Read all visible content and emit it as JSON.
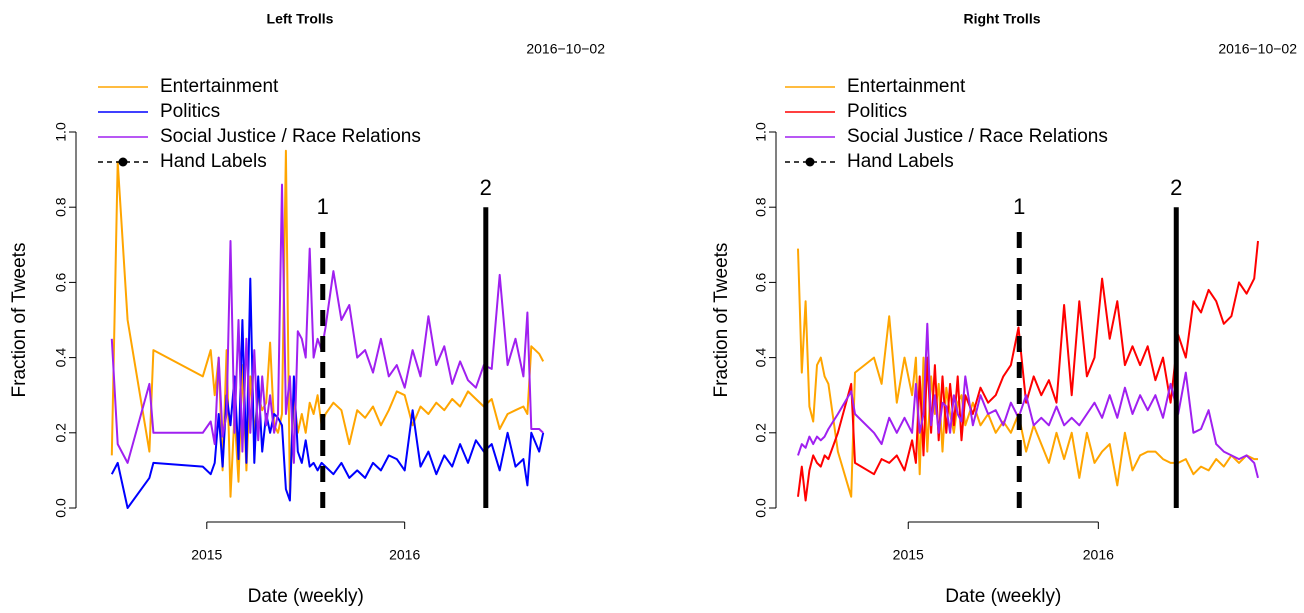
{
  "chart_data": [
    {
      "type": "line",
      "title": "Left Trolls",
      "subtitle": "2016−10−02",
      "xlabel": "Date (weekly)",
      "ylabel": "Fraction of Tweets",
      "x": [
        2014.52,
        2014.55,
        2014.6,
        2014.71,
        2014.73,
        2014.98,
        2015.02,
        2015.04,
        2015.06,
        2015.08,
        2015.1,
        2015.12,
        2015.14,
        2015.16,
        2015.18,
        2015.2,
        2015.22,
        2015.24,
        2015.26,
        2015.28,
        2015.3,
        2015.32,
        2015.34,
        2015.36,
        2015.38,
        2015.4,
        2015.42,
        2015.44,
        2015.46,
        2015.48,
        2015.5,
        2015.52,
        2015.54,
        2015.56,
        2015.58,
        2015.6,
        2015.64,
        2015.68,
        2015.72,
        2015.76,
        2015.8,
        2015.84,
        2015.88,
        2015.92,
        2015.96,
        2016.0,
        2016.04,
        2016.08,
        2016.12,
        2016.16,
        2016.2,
        2016.24,
        2016.28,
        2016.32,
        2016.36,
        2016.4,
        2016.44,
        2016.48,
        2016.52,
        2016.56,
        2016.6,
        2016.62,
        2016.64,
        2016.68,
        2016.7
      ],
      "series": [
        {
          "name": "Entertainment",
          "color": "#FFA500",
          "values": [
            0.14,
            0.92,
            0.5,
            0.15,
            0.42,
            0.35,
            0.42,
            0.3,
            0.4,
            0.1,
            0.42,
            0.03,
            0.25,
            0.07,
            0.38,
            0.1,
            0.35,
            0.2,
            0.3,
            0.26,
            0.28,
            0.44,
            0.22,
            0.2,
            0.25,
            0.95,
            0.03,
            0.3,
            0.2,
            0.25,
            0.2,
            0.28,
            0.25,
            0.3,
            0.22,
            0.25,
            0.28,
            0.26,
            0.17,
            0.26,
            0.24,
            0.27,
            0.22,
            0.26,
            0.31,
            0.3,
            0.22,
            0.27,
            0.25,
            0.28,
            0.26,
            0.29,
            0.27,
            0.31,
            0.29,
            0.27,
            0.29,
            0.21,
            0.25,
            0.26,
            0.27,
            0.25,
            0.43,
            0.41,
            0.39
          ]
        },
        {
          "name": "Politics",
          "color": "#0000FF",
          "values": [
            0.09,
            0.12,
            0.0,
            0.08,
            0.12,
            0.11,
            0.09,
            0.12,
            0.25,
            0.11,
            0.3,
            0.22,
            0.35,
            0.13,
            0.5,
            0.12,
            0.61,
            0.12,
            0.35,
            0.15,
            0.25,
            0.2,
            0.25,
            0.24,
            0.22,
            0.05,
            0.02,
            0.35,
            0.15,
            0.12,
            0.18,
            0.11,
            0.12,
            0.1,
            0.12,
            0.11,
            0.09,
            0.12,
            0.08,
            0.1,
            0.08,
            0.12,
            0.1,
            0.14,
            0.13,
            0.1,
            0.26,
            0.11,
            0.15,
            0.09,
            0.14,
            0.11,
            0.17,
            0.12,
            0.18,
            0.15,
            0.17,
            0.1,
            0.2,
            0.11,
            0.13,
            0.06,
            0.2,
            0.15,
            0.2
          ]
        },
        {
          "name": "Social Justice / Race Relations",
          "color": "#A020F0",
          "values": [
            0.45,
            0.17,
            0.12,
            0.33,
            0.2,
            0.2,
            0.23,
            0.17,
            0.4,
            0.19,
            0.25,
            0.71,
            0.2,
            0.5,
            0.15,
            0.45,
            0.2,
            0.42,
            0.18,
            0.35,
            0.22,
            0.3,
            0.2,
            0.25,
            0.86,
            0.25,
            0.35,
            0.12,
            0.47,
            0.45,
            0.4,
            0.69,
            0.4,
            0.45,
            0.42,
            0.48,
            0.63,
            0.5,
            0.54,
            0.4,
            0.42,
            0.36,
            0.45,
            0.35,
            0.38,
            0.32,
            0.42,
            0.35,
            0.51,
            0.38,
            0.43,
            0.33,
            0.39,
            0.34,
            0.32,
            0.38,
            0.37,
            0.62,
            0.38,
            0.45,
            0.35,
            0.52,
            0.21,
            0.21,
            0.2
          ]
        }
      ],
      "hand_labels": {
        "name": "Hand Labels",
        "color": "#000000",
        "lines": [
          {
            "label": "1",
            "x": 2015.586,
            "top": 0.75,
            "style": "dashed"
          },
          {
            "label": "2",
            "x": 2016.41,
            "top": 0.8,
            "style": "solid"
          }
        ]
      },
      "xlim": [
        2014.43,
        2016.79
      ],
      "xticks": [
        2015,
        2016
      ],
      "ylim": [
        0,
        1
      ],
      "yticks": [
        {
          "value": 0,
          "label": "0.0"
        },
        0.2,
        0.4,
        0.6,
        0.8,
        {
          "value": 1,
          "label": "1.0"
        }
      ],
      "legend": "top-left"
    },
    {
      "type": "line",
      "title": "Right Trolls",
      "subtitle": "2016−10−02",
      "xlabel": "Date (weekly)",
      "ylabel": "Fraction of Tweets",
      "x": [
        2014.42,
        2014.44,
        2014.46,
        2014.48,
        2014.5,
        2014.52,
        2014.54,
        2014.56,
        2014.58,
        2014.63,
        2014.7,
        2014.72,
        2014.82,
        2014.86,
        2014.9,
        2014.94,
        2014.98,
        2015.02,
        2015.04,
        2015.06,
        2015.08,
        2015.1,
        2015.12,
        2015.14,
        2015.16,
        2015.18,
        2015.2,
        2015.22,
        2015.24,
        2015.26,
        2015.28,
        2015.3,
        2015.34,
        2015.38,
        2015.42,
        2015.46,
        2015.5,
        2015.54,
        2015.58,
        2015.62,
        2015.66,
        2015.7,
        2015.74,
        2015.78,
        2015.82,
        2015.86,
        2015.9,
        2015.94,
        2015.98,
        2016.02,
        2016.06,
        2016.1,
        2016.14,
        2016.18,
        2016.22,
        2016.26,
        2016.3,
        2016.34,
        2016.38,
        2016.42,
        2016.46,
        2016.5,
        2016.54,
        2016.58,
        2016.62,
        2016.66,
        2016.7,
        2016.74,
        2016.78,
        2016.82,
        2016.84
      ],
      "series": [
        {
          "name": "Entertainment",
          "color": "#FFA500",
          "values": [
            0.69,
            0.36,
            0.55,
            0.27,
            0.23,
            0.38,
            0.4,
            0.35,
            0.33,
            0.15,
            0.03,
            0.36,
            0.4,
            0.33,
            0.51,
            0.28,
            0.4,
            0.3,
            0.4,
            0.09,
            0.4,
            0.15,
            0.35,
            0.25,
            0.33,
            0.15,
            0.32,
            0.25,
            0.2,
            0.28,
            0.3,
            0.22,
            0.28,
            0.22,
            0.25,
            0.2,
            0.23,
            0.2,
            0.25,
            0.15,
            0.22,
            0.17,
            0.12,
            0.2,
            0.13,
            0.2,
            0.08,
            0.2,
            0.12,
            0.15,
            0.17,
            0.06,
            0.2,
            0.1,
            0.14,
            0.15,
            0.15,
            0.13,
            0.12,
            0.12,
            0.13,
            0.09,
            0.11,
            0.1,
            0.13,
            0.11,
            0.14,
            0.12,
            0.14,
            0.13,
            0.13
          ]
        },
        {
          "name": "Politics",
          "color": "#FF0000",
          "values": [
            0.03,
            0.11,
            0.02,
            0.1,
            0.14,
            0.12,
            0.11,
            0.14,
            0.13,
            0.2,
            0.33,
            0.12,
            0.09,
            0.13,
            0.12,
            0.14,
            0.1,
            0.18,
            0.12,
            0.35,
            0.14,
            0.4,
            0.2,
            0.38,
            0.18,
            0.35,
            0.2,
            0.33,
            0.22,
            0.35,
            0.18,
            0.3,
            0.25,
            0.32,
            0.28,
            0.3,
            0.35,
            0.38,
            0.48,
            0.28,
            0.35,
            0.3,
            0.34,
            0.28,
            0.54,
            0.3,
            0.55,
            0.35,
            0.4,
            0.61,
            0.45,
            0.55,
            0.38,
            0.43,
            0.38,
            0.43,
            0.34,
            0.4,
            0.28,
            0.46,
            0.4,
            0.55,
            0.52,
            0.58,
            0.55,
            0.49,
            0.51,
            0.6,
            0.57,
            0.61,
            0.71
          ]
        },
        {
          "name": "Social Justice / Race Relations",
          "color": "#A020F0",
          "values": [
            0.14,
            0.17,
            0.16,
            0.19,
            0.17,
            0.19,
            0.18,
            0.19,
            0.21,
            0.25,
            0.31,
            0.25,
            0.2,
            0.17,
            0.24,
            0.2,
            0.24,
            0.2,
            0.33,
            0.2,
            0.25,
            0.49,
            0.22,
            0.3,
            0.2,
            0.28,
            0.27,
            0.2,
            0.3,
            0.25,
            0.23,
            0.35,
            0.22,
            0.3,
            0.25,
            0.26,
            0.22,
            0.28,
            0.24,
            0.3,
            0.22,
            0.24,
            0.22,
            0.27,
            0.22,
            0.24,
            0.22,
            0.25,
            0.28,
            0.24,
            0.3,
            0.24,
            0.32,
            0.25,
            0.3,
            0.26,
            0.3,
            0.24,
            0.33,
            0.25,
            0.36,
            0.2,
            0.21,
            0.26,
            0.17,
            0.15,
            0.14,
            0.13,
            0.14,
            0.12,
            0.08
          ]
        }
      ],
      "hand_labels": {
        "name": "Hand Labels",
        "color": "#000000",
        "lines": [
          {
            "label": "1",
            "x": 2015.584,
            "top": 0.75,
            "style": "dashed"
          },
          {
            "label": "2",
            "x": 2016.41,
            "top": 0.8,
            "style": "solid"
          }
        ]
      },
      "xlim": [
        2014.32,
        2016.94
      ],
      "xticks": [
        2015,
        2016
      ],
      "ylim": [
        0,
        1
      ],
      "yticks": [
        {
          "value": 0,
          "label": "0.0"
        },
        0.2,
        0.4,
        0.6,
        0.8,
        {
          "value": 1,
          "label": "1.0"
        }
      ],
      "legend": "top-left"
    }
  ]
}
